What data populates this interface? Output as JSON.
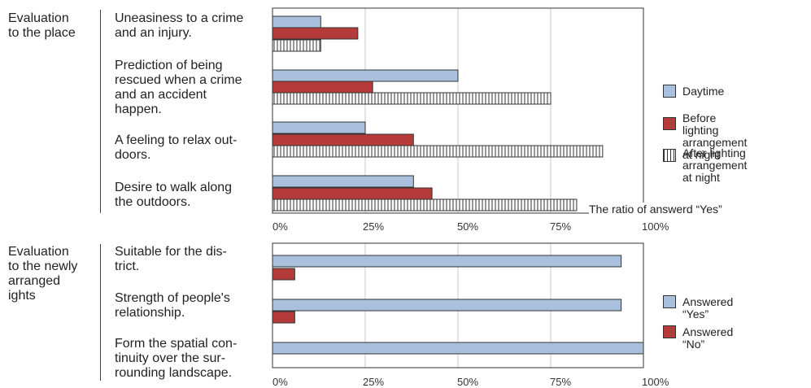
{
  "colors": {
    "blue": "#a8c0dc",
    "red": "#b53a3a",
    "stripe_bg": "#ffffff",
    "stripe_line": "#333333",
    "grid": "#c8c8c8",
    "frame": "#333333"
  },
  "chart_data": [
    {
      "type": "bar",
      "orientation": "horizontal",
      "section_label": "Evaluation\nto the place",
      "categories": [
        "Uneasiness to a crime\nand an injury.",
        "Prediction of being\nrescued when a crime\nand an accident\nhappen.",
        "A feeling to relax out-\ndoors.",
        "Desire to walk along\nthe outdoors."
      ],
      "series": [
        {
          "name": "Daytime",
          "fill": "blue",
          "values": [
            13,
            50,
            25,
            38
          ]
        },
        {
          "name": "Before lighting\narrangement at night",
          "fill": "red",
          "values": [
            23,
            27,
            38,
            43
          ]
        },
        {
          "name": "After lighting\narrangement at night",
          "fill": "stripes",
          "values": [
            13,
            75,
            89,
            82
          ]
        }
      ],
      "xlim": [
        0,
        100
      ],
      "ticks": [
        "0%",
        "25%",
        "50%",
        "75%",
        "100%"
      ],
      "xlabel": "The ratio of answerd “Yes”",
      "grid": true,
      "legend": "right"
    },
    {
      "type": "bar",
      "orientation": "horizontal",
      "section_label": "Evaluation\nto the newly\narranged\nights",
      "categories": [
        "Suitable for the dis-\ntrict.",
        "Strength of people's\nrelationship.",
        "Form the spatial con-\ntinuity over the sur-\nrounding landscape."
      ],
      "series": [
        {
          "name": "Answered  “Yes”",
          "fill": "blue",
          "values": [
            94,
            94,
            100
          ]
        },
        {
          "name": "Answered  “No”",
          "fill": "red",
          "values": [
            6,
            6,
            0
          ]
        }
      ],
      "xlim": [
        0,
        100
      ],
      "ticks": [
        "0%",
        "25%",
        "50%",
        "75%",
        "100%"
      ],
      "xlabel": "",
      "grid": true,
      "legend": "right"
    }
  ]
}
